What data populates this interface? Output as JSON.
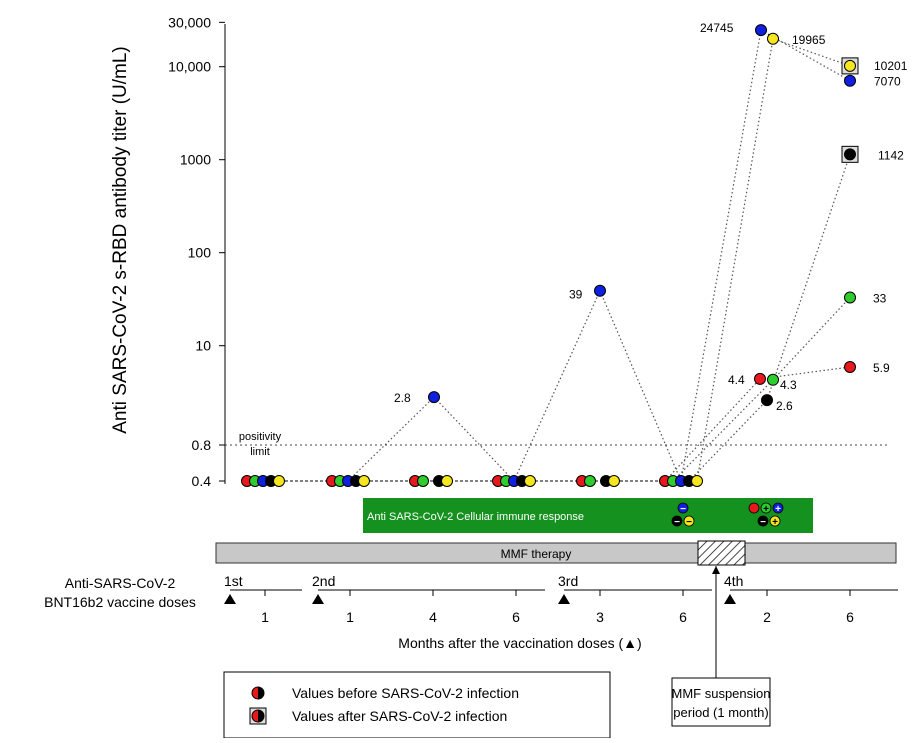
{
  "chart_data": {
    "type": "scatter",
    "ylabel": "Anti SARS-CoV-2 s-RBD antibody titer (U/mL)",
    "xlabel": "Months after the vaccination doses (▲)",
    "y_scale": "log",
    "y_ticks": [
      "0.4",
      "0.8",
      "10",
      "100",
      "1000",
      "10,000",
      "30,000"
    ],
    "y_tick_values": [
      0.4,
      0.8,
      10,
      100,
      1000,
      10000,
      30000
    ],
    "threshold": {
      "value": 0.8,
      "label_line1": "positivity",
      "label_line2": "limit"
    },
    "colors": {
      "red": "#e8191d",
      "green": "#2ecc2e",
      "blue": "#1020e0",
      "yellow": "#f5e61e",
      "black": "#000000",
      "cellular_bg": "#14911e",
      "therapy_bg": "#c8c8c8"
    },
    "timepoints": [
      {
        "id": "t1",
        "label": "1"
      },
      {
        "id": "t2",
        "label": "1"
      },
      {
        "id": "t3",
        "label": "4"
      },
      {
        "id": "t4",
        "label": "6"
      },
      {
        "id": "t5",
        "label": "3"
      },
      {
        "id": "t6",
        "label": "6"
      },
      {
        "id": "t7",
        "label": "2"
      },
      {
        "id": "t8",
        "label": "6"
      }
    ],
    "series": [
      {
        "color": "red",
        "points": [
          {
            "t": "t1",
            "y": 0.4
          },
          {
            "t": "t2",
            "y": 0.4
          },
          {
            "t": "t3",
            "y": 0.4
          },
          {
            "t": "t4",
            "y": 0.4
          },
          {
            "t": "t5",
            "y": 0.4
          },
          {
            "t": "t6",
            "y": 0.4
          },
          {
            "t": "t7",
            "y": 4.4,
            "label": "4.4"
          },
          {
            "t": "t8",
            "y": 5.9,
            "label": "5.9"
          }
        ]
      },
      {
        "color": "green",
        "points": [
          {
            "t": "t1",
            "y": 0.4
          },
          {
            "t": "t2",
            "y": 0.4
          },
          {
            "t": "t3",
            "y": 0.4
          },
          {
            "t": "t4",
            "y": 0.4
          },
          {
            "t": "t5",
            "y": 0.4
          },
          {
            "t": "t6",
            "y": 0.4
          },
          {
            "t": "t7",
            "y": 4.3,
            "label": "4.3"
          },
          {
            "t": "t8",
            "y": 33,
            "label": "33"
          }
        ]
      },
      {
        "color": "blue",
        "points": [
          {
            "t": "t1",
            "y": 0.4
          },
          {
            "t": "t2",
            "y": 0.4
          },
          {
            "t": "t3",
            "y": 2.8,
            "label": "2.8"
          },
          {
            "t": "t4",
            "y": 0.4
          },
          {
            "t": "t5",
            "y": 39,
            "label": "39"
          },
          {
            "t": "t6",
            "y": 0.4
          },
          {
            "t": "t7",
            "y": 24745,
            "label": "24745"
          },
          {
            "t": "t8",
            "y": 7070,
            "label": "7070"
          }
        ]
      },
      {
        "color": "black",
        "points": [
          {
            "t": "t1",
            "y": 0.4
          },
          {
            "t": "t2",
            "y": 0.4
          },
          {
            "t": "t3",
            "y": 0.4
          },
          {
            "t": "t4",
            "y": 0.4
          },
          {
            "t": "t5",
            "y": 0.4
          },
          {
            "t": "t6",
            "y": 0.4
          },
          {
            "t": "t7",
            "y": 2.6,
            "label": "2.6"
          },
          {
            "t": "t8",
            "y": 1142,
            "label": "1142",
            "after_infection": true
          }
        ]
      },
      {
        "color": "yellow",
        "points": [
          {
            "t": "t1",
            "y": 0.4
          },
          {
            "t": "t2",
            "y": 0.4
          },
          {
            "t": "t3",
            "y": 0.4
          },
          {
            "t": "t4",
            "y": 0.4
          },
          {
            "t": "t5",
            "y": 0.4
          },
          {
            "t": "t6",
            "y": 0.4
          },
          {
            "t": "t7",
            "y": 19965,
            "label": "19965"
          },
          {
            "t": "t8",
            "y": 10201,
            "label": "10201",
            "after_infection": true
          }
        ]
      }
    ],
    "cellular_response": {
      "label": "Anti SARS-CoV-2  Cellular immune response",
      "before": [
        {
          "color": "blue",
          "sign": "−"
        },
        {
          "color": "black",
          "sign": "−"
        },
        {
          "color": "yellow",
          "sign": "−"
        }
      ],
      "after": [
        {
          "color": "red",
          "sign": ""
        },
        {
          "color": "green",
          "sign": "+"
        },
        {
          "color": "blue",
          "sign": "+"
        },
        {
          "color": "black",
          "sign": "−"
        },
        {
          "color": "yellow",
          "sign": "+"
        }
      ]
    },
    "therapy_bar_label": "MMF therapy",
    "vaccine_label_line1": "Anti-SARS-CoV-2",
    "vaccine_label_line2": "BNT16b2 vaccine doses",
    "doses": [
      "1st",
      "2nd",
      "3rd",
      "4th"
    ],
    "legend": {
      "before": "Values before SARS-CoV-2 infection",
      "after": "Values after SARS-CoV-2 infection"
    },
    "suspension_label_line1": "MMF suspension",
    "suspension_label_line2": "period (1 month)"
  }
}
